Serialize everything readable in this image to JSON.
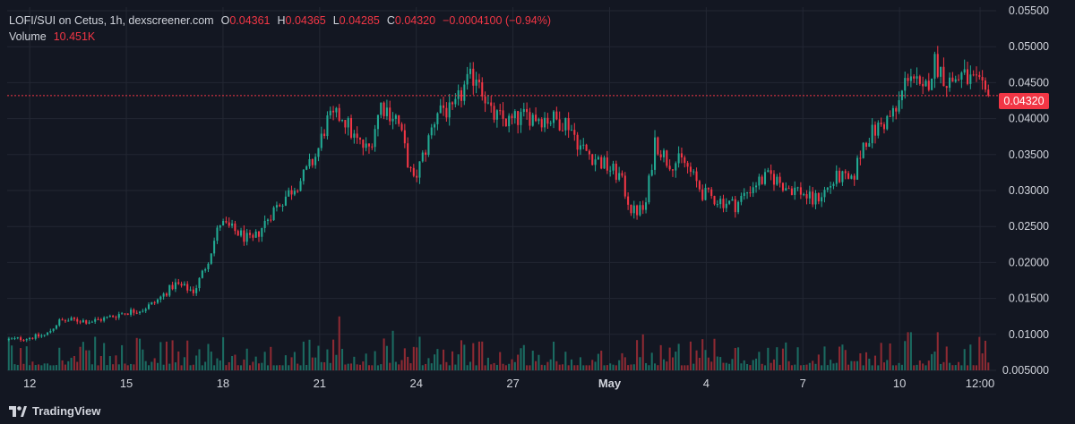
{
  "brand": "TradingView",
  "legend": {
    "title": "LOFI/SUI on Cetus, 1h, dexscreener.com",
    "o_label": "O",
    "open": "0.04361",
    "h_label": "H",
    "high": "0.04365",
    "l_label": "L",
    "low": "0.04285",
    "c_label": "C",
    "close": "0.04320",
    "change": "−0.0004100 (−0.94%)",
    "volume_label": "Volume",
    "volume": "10.451K",
    "last_price": "0.04320"
  },
  "colors": {
    "background": "#131722",
    "grid": "#232733",
    "text": "#d1d4dc",
    "up": "#22ab94",
    "down": "#f23645",
    "up_volume": "#1b6b61",
    "down_volume": "#8e2a33"
  },
  "chart_data": {
    "type": "candlestick",
    "title": "LOFI/SUI on Cetus, 1h, dexscreener.com",
    "interval": "1h",
    "y_axis": {
      "ticks": [
        "0.05500",
        "0.05000",
        "0.04500",
        "0.04000",
        "0.03500",
        "0.03000",
        "0.02500",
        "0.02000",
        "0.01500",
        "0.01000",
        "0.005000"
      ],
      "range": [
        0.005,
        0.0555
      ],
      "last_price": 0.0432
    },
    "x_axis": {
      "ticks": [
        "12",
        "15",
        "18",
        "21",
        "24",
        "27",
        "May",
        "4",
        "7",
        "10",
        "12:00"
      ],
      "tick_positions_in_days": [
        0,
        3,
        6,
        9,
        12,
        15,
        18,
        21,
        24,
        27,
        29.5
      ],
      "range_in_days": [
        -0.7,
        30.0
      ]
    },
    "price_path": [
      [
        -0.7,
        0.0092
      ],
      [
        0.0,
        0.0095
      ],
      [
        0.6,
        0.0099
      ],
      [
        1.0,
        0.0118
      ],
      [
        1.5,
        0.012
      ],
      [
        2.0,
        0.0118
      ],
      [
        2.5,
        0.0123
      ],
      [
        3.0,
        0.013
      ],
      [
        3.6,
        0.0135
      ],
      [
        4.0,
        0.0145
      ],
      [
        4.6,
        0.017
      ],
      [
        5.2,
        0.016
      ],
      [
        5.6,
        0.02
      ],
      [
        6.0,
        0.0255
      ],
      [
        6.6,
        0.024
      ],
      [
        7.0,
        0.0228
      ],
      [
        7.6,
        0.027
      ],
      [
        8.0,
        0.029
      ],
      [
        8.6,
        0.032
      ],
      [
        9.0,
        0.035
      ],
      [
        9.3,
        0.0395
      ],
      [
        9.8,
        0.0405
      ],
      [
        10.2,
        0.037
      ],
      [
        10.6,
        0.0355
      ],
      [
        11.0,
        0.042
      ],
      [
        11.5,
        0.04
      ],
      [
        12.0,
        0.031
      ],
      [
        12.4,
        0.036
      ],
      [
        12.8,
        0.042
      ],
      [
        13.2,
        0.0405
      ],
      [
        13.6,
        0.0445
      ],
      [
        14.0,
        0.0465
      ],
      [
        14.4,
        0.0405
      ],
      [
        15.0,
        0.0395
      ],
      [
        15.6,
        0.0405
      ],
      [
        16.2,
        0.04
      ],
      [
        16.8,
        0.0395
      ],
      [
        17.2,
        0.036
      ],
      [
        17.8,
        0.034
      ],
      [
        18.4,
        0.032
      ],
      [
        18.8,
        0.027
      ],
      [
        19.2,
        0.0275
      ],
      [
        19.5,
        0.037
      ],
      [
        19.9,
        0.034
      ],
      [
        20.4,
        0.034
      ],
      [
        21.0,
        0.0295
      ],
      [
        21.6,
        0.0285
      ],
      [
        22.0,
        0.028
      ],
      [
        22.6,
        0.031
      ],
      [
        23.1,
        0.032
      ],
      [
        23.6,
        0.0305
      ],
      [
        24.0,
        0.03
      ],
      [
        24.4,
        0.0285
      ],
      [
        24.8,
        0.03
      ],
      [
        25.2,
        0.032
      ],
      [
        25.6,
        0.031
      ],
      [
        26.0,
        0.037
      ],
      [
        26.5,
        0.039
      ],
      [
        27.0,
        0.041
      ],
      [
        27.4,
        0.047
      ],
      [
        27.8,
        0.043
      ],
      [
        28.2,
        0.048
      ],
      [
        28.6,
        0.045
      ],
      [
        29.0,
        0.046
      ],
      [
        29.4,
        0.045
      ],
      [
        29.8,
        0.0432
      ]
    ],
    "volume_spikes": [
      [
        9.6,
        0.012
      ],
      [
        11.3,
        0.01
      ],
      [
        14.0,
        0.0085
      ],
      [
        19.0,
        0.0095
      ],
      [
        19.6,
        0.008
      ],
      [
        27.3,
        0.0098
      ],
      [
        28.2,
        0.0098
      ]
    ]
  }
}
